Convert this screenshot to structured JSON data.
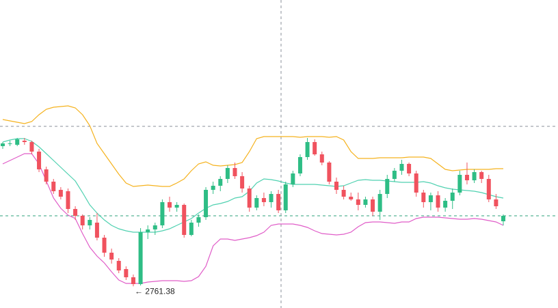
{
  "chart_data": {
    "type": "candlestick",
    "ylim": [
      2745.5,
      2971
    ],
    "up_color": "#2ebd85",
    "down_color": "#f0525e",
    "open": [
      2864,
      2866,
      2865,
      2868,
      2867,
      2860,
      2847,
      2838,
      2832,
      2831,
      2818,
      2813,
      2806,
      2808,
      2797,
      2786,
      2780,
      2774,
      2768,
      2763,
      2801,
      2803,
      2806,
      2823,
      2819,
      2821,
      2799,
      2808,
      2812,
      2832,
      2835,
      2840,
      2848,
      2842,
      2833,
      2819,
      2826,
      2823,
      2829,
      2817,
      2836,
      2844,
      2856,
      2867,
      2858,
      2852,
      2838,
      2832,
      2827,
      2825,
      2821,
      2825,
      2816,
      2829,
      2840,
      2846,
      2851,
      2844,
      2830,
      2823,
      2828,
      2819,
      2824,
      2830,
      2843,
      2839,
      2845,
      2840,
      2825,
      2809
    ],
    "high": [
      2867,
      2868,
      2870,
      2870,
      2868,
      2862,
      2849,
      2840,
      2834,
      2833,
      2820,
      2814,
      2812,
      2815,
      2799,
      2789,
      2782,
      2776,
      2770,
      2804,
      2806,
      2808,
      2825,
      2827,
      2823,
      2822,
      2810,
      2814,
      2834,
      2838,
      2842,
      2850,
      2852,
      2845,
      2835,
      2828,
      2830,
      2831,
      2832,
      2838,
      2846,
      2858,
      2870,
      2869,
      2860,
      2853,
      2841,
      2835,
      2830,
      2830,
      2827,
      2827,
      2832,
      2843,
      2848,
      2854,
      2852,
      2846,
      2832,
      2830,
      2831,
      2826,
      2833,
      2846,
      2852,
      2847,
      2846,
      2843,
      2829,
      2814
    ],
    "low": [
      2862,
      2864,
      2864,
      2865,
      2858,
      2845,
      2836,
      2829,
      2825,
      2815,
      2810,
      2803,
      2803,
      2795,
      2783,
      2778,
      2771,
      2766,
      2761.38,
      2762,
      2796,
      2799,
      2804,
      2816,
      2816,
      2797,
      2798,
      2805,
      2810,
      2829,
      2831,
      2837,
      2840,
      2830,
      2816,
      2817,
      2820,
      2819,
      2815,
      2815,
      2834,
      2842,
      2854,
      2857,
      2850,
      2836,
      2829,
      2825,
      2824,
      2817,
      2819,
      2813,
      2810,
      2826,
      2838,
      2843,
      2842,
      2827,
      2819,
      2817,
      2816,
      2816,
      2818,
      2828,
      2836,
      2837,
      2837,
      2823,
      2818,
      2806
    ],
    "close": [
      2866,
      2866,
      2869,
      2867,
      2860,
      2847,
      2838,
      2831,
      2827,
      2818,
      2813,
      2806,
      2810,
      2797,
      2786,
      2781,
      2773,
      2768,
      2763,
      2801,
      2803,
      2806,
      2823,
      2819,
      2821,
      2799,
      2808,
      2812,
      2832,
      2835,
      2840,
      2848,
      2842,
      2833,
      2819,
      2826,
      2823,
      2829,
      2817,
      2836,
      2844,
      2856,
      2867,
      2858,
      2852,
      2838,
      2832,
      2827,
      2825,
      2821,
      2825,
      2816,
      2829,
      2840,
      2846,
      2851,
      2844,
      2830,
      2823,
      2828,
      2819,
      2824,
      2830,
      2843,
      2839,
      2845,
      2840,
      2825,
      2820,
      2813
    ],
    "bands": [
      {
        "color": "#f5b21d",
        "values": [
          2883.5,
          2882.5,
          2881.5,
          2880.5,
          2882,
          2887,
          2891,
          2892.5,
          2893,
          2893.5,
          2892,
          2887,
          2879,
          2866,
          2858.5,
          2851,
          2843.5,
          2837,
          2834.5,
          2835,
          2835.5,
          2835,
          2834.5,
          2834.5,
          2837,
          2840,
          2846,
          2851,
          2852.5,
          2850,
          2849.5,
          2850,
          2850.5,
          2852,
          2860,
          2869.5,
          2871,
          2871,
          2871,
          2871,
          2871,
          2870.5,
          2871,
          2871,
          2871,
          2870.5,
          2871,
          2868.5,
          2860,
          2855,
          2855,
          2855,
          2855.5,
          2855.5,
          2855.5,
          2855.5,
          2856,
          2856,
          2856,
          2855,
          2851,
          2847,
          2846,
          2846.5,
          2847,
          2847,
          2847,
          2847,
          2847.5,
          2847.5
        ]
      },
      {
        "color": "#4fd1b0",
        "values": [
          2867,
          2868.5,
          2869.5,
          2869.5,
          2867.5,
          2863.5,
          2858.5,
          2853.5,
          2848.5,
          2843.5,
          2838.5,
          2830,
          2821,
          2815,
          2810,
          2806,
          2803.5,
          2802,
          2801,
          2801,
          2801,
          2801,
          2802,
          2803.5,
          2806,
          2808.5,
          2811,
          2815,
          2818.5,
          2821,
          2822,
          2823.5,
          2826,
          2827,
          2831,
          2837,
          2840,
          2839.5,
          2838.5,
          2837,
          2836,
          2836,
          2836,
          2836,
          2835.5,
          2835,
          2834.5,
          2835,
          2837,
          2839,
          2839.5,
          2839,
          2839,
          2838.5,
          2838,
          2837.5,
          2837.5,
          2837.5,
          2838,
          2837,
          2835,
          2833.5,
          2832.5,
          2832,
          2831.5,
          2831,
          2830,
          2828.5,
          2827,
          2826
        ]
      },
      {
        "color": "#e05cc8",
        "values": [
          2851,
          2853.5,
          2856,
          2858.5,
          2858.5,
          2851,
          2838.5,
          2826,
          2818.5,
          2813.5,
          2811,
          2800,
          2790,
          2783.5,
          2778.5,
          2772,
          2766,
          2763.5,
          2763.5,
          2763.5,
          2764.5,
          2765,
          2765.5,
          2765.5,
          2765.5,
          2765,
          2765.5,
          2768.5,
          2776,
          2791,
          2796,
          2796,
          2795,
          2796,
          2797,
          2798.5,
          2801,
          2806,
          2807,
          2807,
          2807,
          2806,
          2804.5,
          2802,
          2800,
          2799.5,
          2799,
          2799.5,
          2801,
          2805,
          2808,
          2808.5,
          2808.5,
          2808,
          2807.5,
          2808.5,
          2808.5,
          2811,
          2812,
          2812,
          2812,
          2811.5,
          2811,
          2810.5,
          2810.5,
          2811,
          2810.5,
          2809.5,
          2808.5,
          2806
        ]
      }
    ],
    "annotation": "← 2761.38"
  }
}
